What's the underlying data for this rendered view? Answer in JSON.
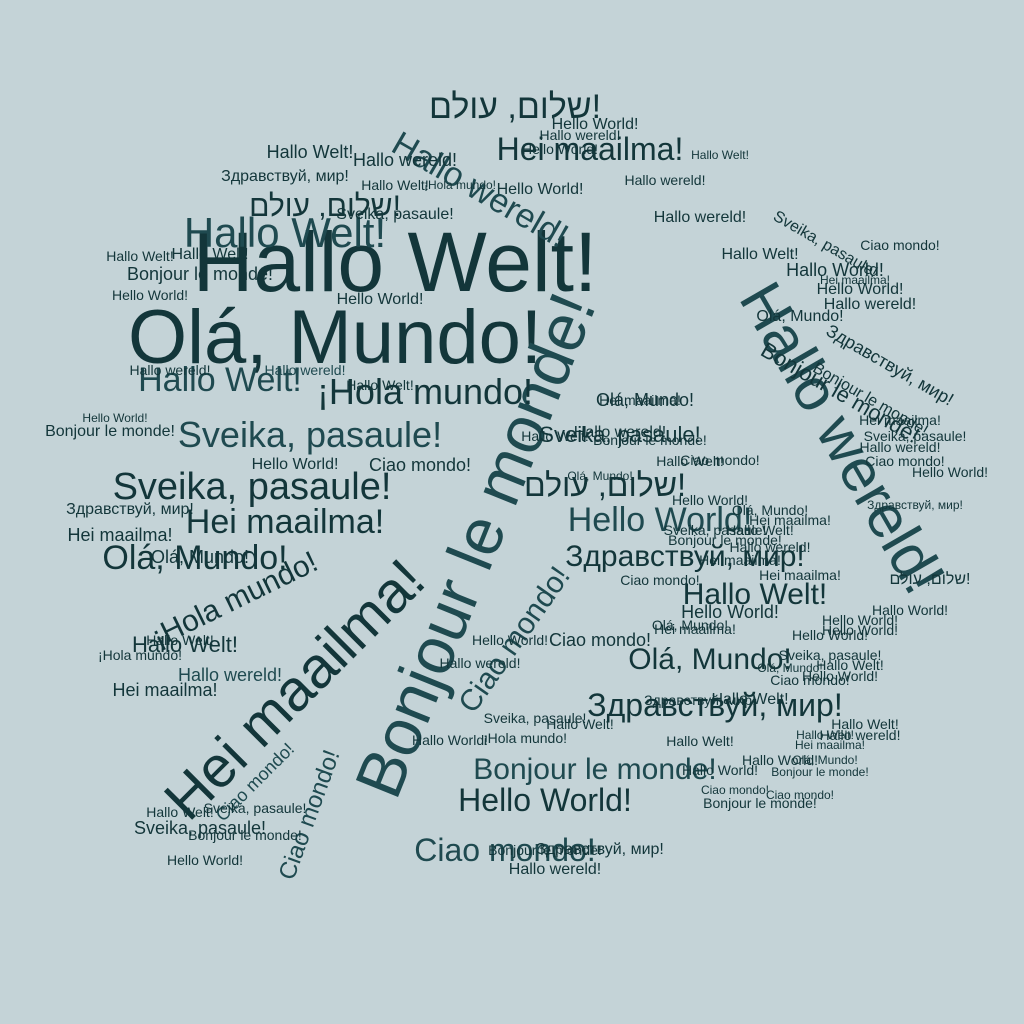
{
  "colors": {
    "background": "#c4d3d7",
    "ink_dark": "#13363a",
    "ink_mid": "#1f4a50",
    "ink_light": "#2f6068"
  },
  "words": [
    {
      "text": "Hallo Welt!"
    },
    {
      "text": "Olá, Mundo!"
    },
    {
      "text": "Bonjour le monde!"
    },
    {
      "text": "Hallo wereld!"
    },
    {
      "text": "Hei maailma!"
    },
    {
      "text": "¡Hola mundo!"
    },
    {
      "text": "Hallo Welt!"
    },
    {
      "text": "Sveika, pasaule!"
    },
    {
      "text": "Sveika, pasaule!"
    },
    {
      "text": "Hei maailma!"
    },
    {
      "text": "Olá, Mundo!"
    },
    {
      "text": "¡Hola mundo!"
    },
    {
      "text": "Hallo Welt!"
    },
    {
      "text": "Hallo wereld!"
    },
    {
      "text": "Hallo wereld!"
    },
    {
      "text": "Hello World!"
    },
    {
      "text": "Здравствуй, мир!"
    },
    {
      "text": "Hallo Welt!"
    },
    {
      "text": "Olá, Mundo!"
    },
    {
      "text": "Здравствуй, мир!"
    },
    {
      "text": "Bonjour le monde!"
    },
    {
      "text": "Hello World!"
    },
    {
      "text": "Ciao mondo!"
    },
    {
      "text": "Ciao mondo!"
    },
    {
      "text": "Ciao mondo!"
    },
    {
      "text": "שלום, עולם!"
    },
    {
      "text": "שלום, עולם!"
    },
    {
      "text": "שלום, עולם!"
    },
    {
      "text": "Hei maailma!"
    },
    {
      "text": "Hallo Welt!"
    },
    {
      "text": "Hallo wereld!"
    },
    {
      "text": "Здравствуй, мир!"
    },
    {
      "text": "Hello World!"
    },
    {
      "text": "Hello World!"
    },
    {
      "text": "Hello World!"
    },
    {
      "text": "Hallo wereld!"
    },
    {
      "text": "Bonjour le monde!"
    },
    {
      "text": "Olá, Mundo!"
    },
    {
      "text": "Hallo Welt!"
    },
    {
      "text": "Sveika, pasaule!"
    },
    {
      "text": "Hallo wereld!"
    },
    {
      "text": "Hallo World!"
    },
    {
      "text": "Hello World!"
    },
    {
      "text": "Hallo wereld!"
    },
    {
      "text": "Olá, Mundo!"
    },
    {
      "text": "Здравствуй, мир!"
    },
    {
      "text": "Bonjour le monde!"
    },
    {
      "text": "Sveika, pasaule!"
    },
    {
      "text": "Ciao mondo!"
    },
    {
      "text": "Hello World!"
    },
    {
      "text": "Ciao mondo!"
    },
    {
      "text": "Hei maailma!"
    },
    {
      "text": "Hei maailma!"
    },
    {
      "text": "Olá, Mundo!"
    },
    {
      "text": "Hallo Welt!"
    },
    {
      "text": "Hallo World!"
    },
    {
      "text": "¡Hola mundo!"
    },
    {
      "text": "Hallo Welt!"
    },
    {
      "text": "Hallo Welt!"
    },
    {
      "text": "Hallo wereld!"
    },
    {
      "text": "Hallo wereld!"
    },
    {
      "text": "Hello World!"
    },
    {
      "text": "Hallo Welt!"
    },
    {
      "text": "Hei maailma!"
    },
    {
      "text": "Olá, Mundo!"
    },
    {
      "text": "Ciao mondo!"
    },
    {
      "text": "Ciao mondo!"
    },
    {
      "text": "Hallo Welt!"
    },
    {
      "text": "Hallo wereld!"
    },
    {
      "text": "Hello World!"
    },
    {
      "text": "Hei maailma!"
    },
    {
      "text": "Bonjour le monde!"
    },
    {
      "text": "Здравствуй, мир!"
    },
    {
      "text": "Bonjour le monde!"
    },
    {
      "text": "Ciao mondo!"
    },
    {
      "text": "Sveika, pasaule!"
    },
    {
      "text": "Hallo wereld!"
    },
    {
      "text": "Hello World!"
    },
    {
      "text": "Hallo Welt!"
    },
    {
      "text": "¡Hola mundo!"
    },
    {
      "text": "¡Hola mundo!"
    },
    {
      "text": "Sveika, pasaule!"
    },
    {
      "text": "Ciao mondo!"
    },
    {
      "text": "Bonjour le monde!"
    },
    {
      "text": "Ciao mondo!"
    },
    {
      "text": "Hallo Welt!"
    },
    {
      "text": "Olá, Mundo!"
    },
    {
      "text": "Hei maailma!"
    },
    {
      "text": "Bonjour le monde!"
    },
    {
      "text": "Hallo Welt!"
    },
    {
      "text": "Hello World!"
    },
    {
      "text": "Hello World!"
    },
    {
      "text": "Hallo wereld!"
    },
    {
      "text": "Hallo wereld!"
    },
    {
      "text": "Sveika, pasaule!"
    },
    {
      "text": "Hallo Welt!"
    },
    {
      "text": "Hallo World!"
    },
    {
      "text": "Hallo Welt!"
    },
    {
      "text": "Bonjour le monde!"
    },
    {
      "text": "Hallo Welt!"
    },
    {
      "text": "Hello World!"
    },
    {
      "text": "Hallo Welt!"
    },
    {
      "text": "Sveika, pasaule!"
    },
    {
      "text": "Bonjour le monde!"
    },
    {
      "text": "Здравствуй, мир!"
    },
    {
      "text": "Hei maailma!"
    },
    {
      "text": "Ciao mondo!"
    },
    {
      "text": "Здравствуй, мир!"
    },
    {
      "text": "שלום, עולם!"
    },
    {
      "text": "Hallo World!"
    },
    {
      "text": "Hello World!"
    },
    {
      "text": "Hello World!"
    },
    {
      "text": "Ciao mondo!"
    },
    {
      "text": "Hallo Welt!"
    },
    {
      "text": "Hello World!"
    },
    {
      "text": "Hallo wereld!"
    },
    {
      "text": "Olá, Mundo!"
    },
    {
      "text": "Hei maailma!"
    },
    {
      "text": "Sveika, pasaule!"
    },
    {
      "text": "Ciao mondo!"
    },
    {
      "text": "Hello World!"
    },
    {
      "text": "Hallo wereld!"
    },
    {
      "text": "Sveika, pasaule!"
    },
    {
      "text": "Hallo Welt!"
    },
    {
      "text": "Hallo World!"
    },
    {
      "text": "Hello World!"
    },
    {
      "text": "Здравствуй, мир!"
    },
    {
      "text": "Hei maailma!"
    },
    {
      "text": "Bonjour le monde!"
    },
    {
      "text": "Hallo Welt!"
    },
    {
      "text": "Olá, Mundo!"
    },
    {
      "text": "Hallo Welt!"
    },
    {
      "text": "Hello World!"
    },
    {
      "text": "Sveika, pasaule!"
    },
    {
      "text": "Bonjour le monde!"
    },
    {
      "text": "Hei maailma!"
    },
    {
      "text": "Hallo wereld!"
    },
    {
      "text": "Hallo Welt!"
    },
    {
      "text": "Olá, Mundo!"
    },
    {
      "text": "Hei maailma!"
    },
    {
      "text": "Ciao mondo!"
    },
    {
      "text": "Hello World!"
    },
    {
      "text": "Hallo Welt!"
    },
    {
      "text": "Hallo wereld!"
    },
    {
      "text": "Hallo wereld!"
    }
  ]
}
